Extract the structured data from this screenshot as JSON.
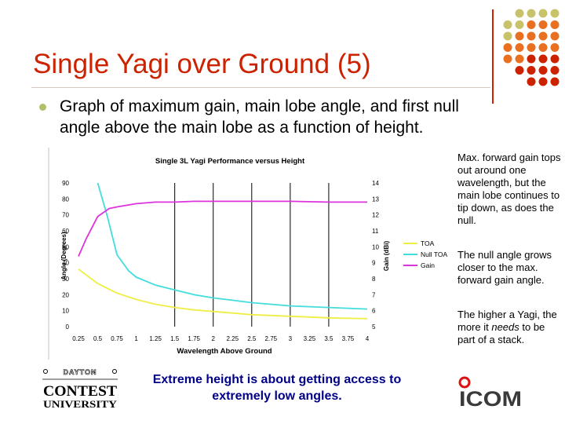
{
  "slide": {
    "title": "Single Yagi over Ground (5)",
    "bullet": "Graph of maximum gain, main lobe angle, and first null angle above the main lobe as a function of height.",
    "side_notes": [
      "Max. forward gain tops out around one wavelength, but the main lobe continues to tip down, as does the null.",
      "The null angle grows closer to the max. forward gain angle."
    ],
    "side_note_3": {
      "before": "The higher a Yagi, the more it ",
      "emph": "needs",
      "after": " to be part of a stack."
    },
    "bottom_text": "Extreme height is about getting access to extremely low angles.",
    "colors": {
      "title": "#cc2200",
      "accent_dots_top": "#c8c36a",
      "accent_dots_mid": "#e87020",
      "accent_dots_bottom": "#cc2200",
      "bottom_text": "#000088"
    }
  },
  "logos": {
    "contest": {
      "top": "DAYTON",
      "line1": "CONTEST",
      "line2": "UNIVERSITY"
    },
    "icom": {
      "text": "ICOM"
    }
  },
  "chart_data": {
    "type": "line",
    "title": "Single 3L Yagi Performance versus Height",
    "xlabel": "Wavelength Above Ground",
    "ylabel_left": "Angle (Degrees)",
    "ylabel_right": "Gain (dBi)",
    "x_ticks": [
      "0.25",
      "0.5",
      "0.75",
      "1",
      "1.25",
      "1.5",
      "1.75",
      "2",
      "2.25",
      "2.5",
      "2.75",
      "3",
      "3.25",
      "3.5",
      "3.75",
      "4"
    ],
    "y_left_ticks": [
      0,
      10,
      20,
      30,
      40,
      50,
      60,
      70,
      80,
      90
    ],
    "y_right_ticks": [
      5,
      6,
      7,
      8,
      9,
      10,
      11,
      12,
      13,
      14
    ],
    "ylim_left": [
      0,
      90
    ],
    "ylim_right": [
      5,
      14
    ],
    "xlim": [
      0.25,
      4
    ],
    "vertical_gridlines_at": [
      1.5,
      2,
      2.5,
      3,
      3.5
    ],
    "legend": [
      "TOA",
      "Null TOA",
      "Gain"
    ],
    "series": [
      {
        "name": "TOA",
        "axis": "left",
        "color": "#eeee44",
        "x": [
          0.25,
          0.5,
          0.75,
          1,
          1.25,
          1.5,
          1.75,
          2,
          2.25,
          2.5,
          2.75,
          3,
          3.25,
          3.5,
          3.75,
          4
        ],
        "values": [
          36,
          27,
          21,
          17,
          14,
          12,
          10.5,
          9.5,
          8.5,
          7.5,
          7,
          6.5,
          6,
          5.5,
          5.2,
          5
        ]
      },
      {
        "name": "Null TOA",
        "axis": "left",
        "color": "#44dddd",
        "x": [
          0.5,
          0.62,
          0.75,
          0.9,
          1,
          1.25,
          1.5,
          1.75,
          2,
          2.25,
          2.5,
          2.75,
          3,
          3.25,
          3.5,
          3.75,
          4
        ],
        "values": [
          90,
          70,
          45,
          35,
          31,
          26,
          23,
          20,
          18,
          16.5,
          15,
          14,
          13,
          12.5,
          12,
          11.5,
          11
        ]
      },
      {
        "name": "Gain",
        "axis": "right",
        "color": "#dd33dd",
        "x": [
          0.25,
          0.35,
          0.5,
          0.65,
          0.75,
          1,
          1.25,
          1.5,
          1.75,
          2,
          2.5,
          3,
          3.5,
          4
        ],
        "values": [
          9.4,
          10.5,
          11.9,
          12.4,
          12.5,
          12.7,
          12.8,
          12.8,
          12.85,
          12.85,
          12.85,
          12.85,
          12.8,
          12.8
        ]
      }
    ]
  }
}
